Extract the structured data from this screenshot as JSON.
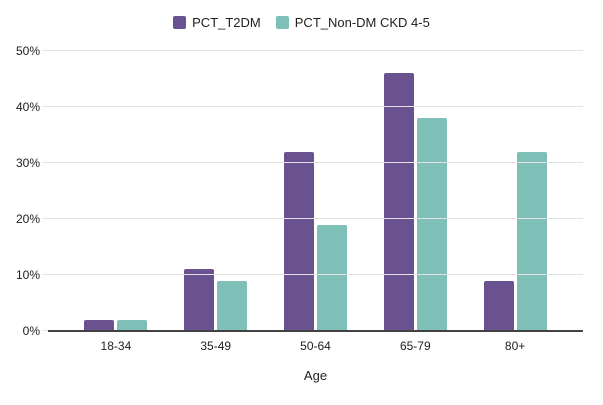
{
  "chart_data": {
    "type": "bar",
    "title": "",
    "categories": [
      "18-34",
      "35-49",
      "50-64",
      "65-79",
      "80+"
    ],
    "series": [
      {
        "name": "PCT_T2DM",
        "color": "#6a5291",
        "values": [
          2,
          11,
          32,
          46,
          9
        ]
      },
      {
        "name": "PCT_Non-DM CKD 4-5",
        "color": "#7ebfb8",
        "values": [
          2,
          9,
          19,
          38,
          32
        ]
      }
    ],
    "xlabel": "Age",
    "ylabel": "",
    "ylim": [
      0,
      50
    ],
    "ytick_step": 10,
    "ytick_labels": [
      "0%",
      "10%",
      "20%",
      "30%",
      "40%",
      "50%"
    ],
    "grid": true,
    "legend_position": "top",
    "colors": {
      "gridline": "#e3e3e3",
      "axis": "#424242",
      "text": "#212121",
      "background": "#ffffff"
    }
  }
}
